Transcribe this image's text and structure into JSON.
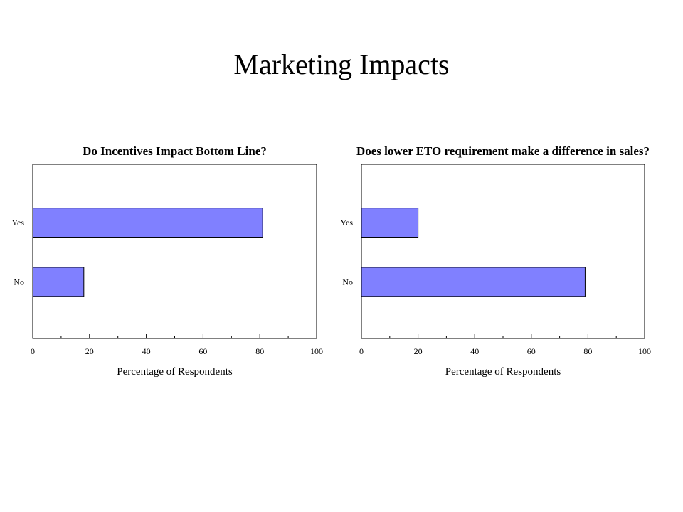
{
  "slide": {
    "title": "Marketing Impacts"
  },
  "colors": {
    "bar_fill": "#8080ff",
    "bar_stroke": "#000000",
    "frame": "#000000",
    "background": "#ffffff"
  },
  "chart_data": [
    {
      "type": "bar",
      "orientation": "horizontal",
      "title": "Do Incentives Impact Bottom Line?",
      "xlabel": "Percentage of Respondents",
      "ylabel": "",
      "categories": [
        "Yes",
        "No"
      ],
      "values": [
        81,
        18
      ],
      "xlim": [
        0,
        100
      ],
      "xticks": [
        "0",
        "20",
        "40",
        "60",
        "80",
        "100"
      ],
      "grid": false,
      "legend": "none"
    },
    {
      "type": "bar",
      "orientation": "horizontal",
      "title": "Does lower ETO requirement make a difference in sales?",
      "xlabel": "Percentage of Respondents",
      "ylabel": "",
      "categories": [
        "Yes",
        "No"
      ],
      "values": [
        20,
        79
      ],
      "xlim": [
        0,
        100
      ],
      "xticks": [
        "0",
        "20",
        "40",
        "60",
        "80",
        "100"
      ],
      "grid": false,
      "legend": "none"
    }
  ]
}
